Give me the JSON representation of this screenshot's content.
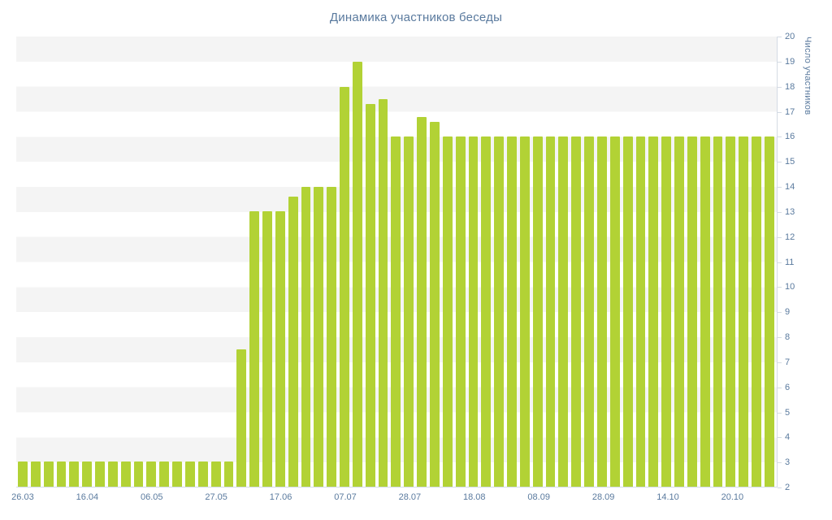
{
  "page": {
    "background": "#ffffff"
  },
  "chart_data": {
    "type": "bar",
    "title": "Динамика участников беседы",
    "xlabel": "",
    "ylabel": "Число участников",
    "ymin": 2,
    "ymax": 20,
    "y_tick_step": 1,
    "y_tick_labels": [
      2,
      3,
      4,
      5,
      6,
      7,
      8,
      9,
      10,
      11,
      12,
      13,
      14,
      15,
      16,
      17,
      18,
      19,
      20
    ],
    "grid": "striped-horizontal-bands",
    "legend": "none",
    "bar_color": "#b2d235",
    "axis_color": "#d4dbe4",
    "text_color": "#5a7a9e",
    "stripe_color": "#f4f4f4",
    "plot_background": "#ffffff",
    "x_tick_labels": [
      "26.03",
      "16.04",
      "06.05",
      "27.05",
      "17.06",
      "07.07",
      "28.07",
      "18.08",
      "08.09",
      "28.09",
      "14.10",
      "20.10"
    ],
    "x_tick_every_n_bars": 5,
    "values": [
      3,
      3,
      3,
      3,
      3,
      3,
      3,
      3,
      3,
      3,
      3,
      3,
      3,
      3,
      3,
      3,
      3,
      7.5,
      13,
      13,
      13,
      13.6,
      14,
      14,
      14,
      18,
      19,
      17.3,
      17.5,
      16,
      16,
      16.8,
      16.6,
      16,
      16,
      16,
      16,
      16,
      16,
      16,
      16,
      16,
      16,
      16,
      16,
      16,
      16,
      16,
      16,
      16,
      16,
      16,
      16,
      16,
      16,
      16,
      16,
      16,
      16
    ]
  }
}
